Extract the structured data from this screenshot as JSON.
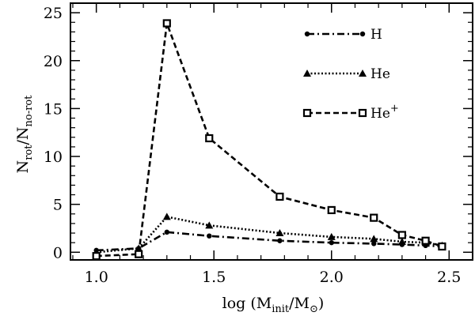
{
  "chart_data": {
    "type": "line",
    "title": "",
    "xlabel": "log (Minit/M⊙)",
    "xlabel_parts": {
      "prefix": "log (M",
      "sub1": "init",
      "mid": "/M",
      "sub2": "⊙",
      "suffix": ")"
    },
    "ylabel": "Nrot/Nno-rot",
    "ylabel_parts": {
      "n1": "N",
      "sub1": "rot",
      "slash": "/N",
      "sub2": "no-rot"
    },
    "xlim": [
      0.89,
      2.6
    ],
    "ylim": [
      -0.8,
      26
    ],
    "xticks": [
      1.0,
      1.5,
      2.0,
      2.5
    ],
    "xtick_labels": [
      "1.0",
      "1.5",
      "2.0",
      "2.5"
    ],
    "yticks": [
      0,
      5,
      10,
      15,
      20,
      25
    ],
    "ytick_labels": [
      "0",
      "5",
      "10",
      "15",
      "20",
      "25"
    ],
    "legend_position": "top-right",
    "series": [
      {
        "name": "H",
        "label_parts": {
          "base": "H",
          "sup": ""
        },
        "line_style": "dash-dot",
        "marker": "circle",
        "x": [
          1.0,
          1.18,
          1.3,
          1.48,
          1.78,
          2.0,
          2.18,
          2.3,
          2.4,
          2.47
        ],
        "y": [
          0.2,
          0.4,
          2.1,
          1.7,
          1.2,
          1.0,
          0.9,
          0.8,
          0.7,
          0.6
        ]
      },
      {
        "name": "He",
        "label_parts": {
          "base": "He",
          "sup": ""
        },
        "line_style": "dotted",
        "marker": "triangle",
        "x": [
          1.0,
          1.18,
          1.3,
          1.48,
          1.78,
          2.0,
          2.18,
          2.3,
          2.4,
          2.47
        ],
        "y": [
          0.0,
          0.4,
          3.7,
          2.8,
          2.0,
          1.6,
          1.4,
          1.1,
          1.0,
          0.7
        ]
      },
      {
        "name": "He+",
        "label_parts": {
          "base": "He",
          "sup": "+"
        },
        "line_style": "dashed",
        "marker": "square",
        "x": [
          1.0,
          1.18,
          1.3,
          1.48,
          1.78,
          2.0,
          2.18,
          2.3,
          2.4,
          2.47
        ],
        "y": [
          -0.4,
          -0.2,
          23.9,
          11.9,
          5.8,
          4.4,
          3.6,
          1.8,
          1.2,
          0.6
        ]
      }
    ]
  }
}
